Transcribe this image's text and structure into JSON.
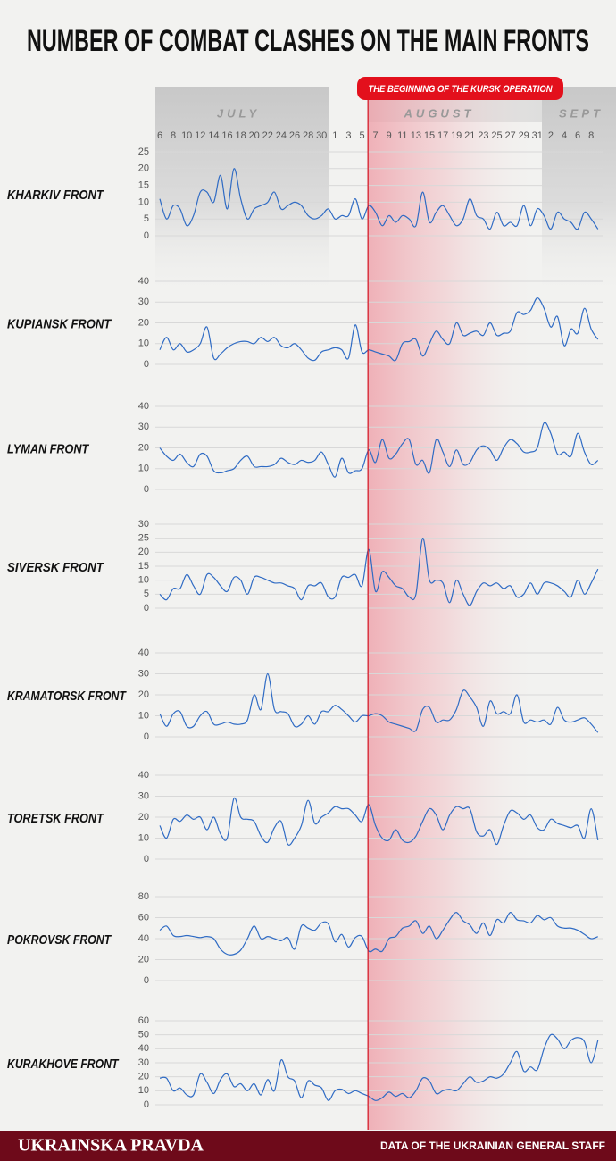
{
  "header": {
    "title": "NUMBER OF COMBAT CLASHES ON THE MAIN FRONTS"
  },
  "x_axis": {
    "categories": [
      "6",
      null,
      "8",
      null,
      "10",
      null,
      "12",
      null,
      "14",
      null,
      "16",
      null,
      "18",
      null,
      "20",
      null,
      "22",
      null,
      "24",
      null,
      "26",
      null,
      "28",
      null,
      "30",
      null,
      "1",
      null,
      "3",
      null,
      "5",
      null,
      "7",
      null,
      "9",
      null,
      "11",
      null,
      "13",
      null,
      "15",
      null,
      "17",
      null,
      "19",
      null,
      "21",
      null,
      "23",
      null,
      "25",
      null,
      "27",
      null,
      "29",
      null,
      "31",
      null,
      "2",
      null,
      "4",
      null,
      "6",
      null,
      "8",
      null
    ],
    "months": [
      "JULY",
      "AUGUST",
      "SEPT"
    ],
    "event": {
      "label": "THE BEGINNING OF THE KURSK OPERATION",
      "category_index": 31
    }
  },
  "chart_data": [
    {
      "type": "line",
      "title": "KHARKIV FRONT",
      "color": "#2f6bc4",
      "ylim": [
        0,
        25
      ],
      "yticks": [
        0,
        5,
        10,
        15,
        20,
        25
      ],
      "values": [
        11,
        5,
        9,
        8,
        3,
        6,
        13,
        13,
        10,
        18,
        8,
        20,
        11,
        5,
        8,
        9,
        10,
        13,
        8,
        9,
        10,
        9,
        6,
        5,
        6,
        8,
        5,
        6,
        6,
        11,
        5,
        9,
        7,
        3,
        6,
        4,
        6,
        5,
        3,
        13,
        4,
        7,
        9,
        6,
        3,
        5,
        11,
        6,
        5,
        2,
        7,
        3,
        4,
        3,
        9,
        3,
        8,
        6,
        2,
        7,
        5,
        4,
        2,
        7,
        5,
        2
      ]
    },
    {
      "type": "line",
      "title": "KUPIANSK FRONT",
      "color": "#2f6bc4",
      "ylim": [
        0,
        40
      ],
      "yticks": [
        0,
        10,
        20,
        30,
        40
      ],
      "values": [
        7,
        13,
        7,
        10,
        6,
        7,
        10,
        18,
        3,
        5,
        8,
        10,
        11,
        11,
        10,
        13,
        11,
        13,
        9,
        8,
        10,
        7,
        3,
        2,
        6,
        7,
        8,
        7,
        3,
        19,
        6,
        7,
        6,
        5,
        4,
        2,
        10,
        11,
        12,
        4,
        10,
        16,
        12,
        10,
        20,
        14,
        15,
        16,
        14,
        20,
        14,
        15,
        16,
        25,
        24,
        26,
        32,
        27,
        18,
        23,
        9,
        17,
        15,
        27,
        17,
        12
      ]
    },
    {
      "type": "line",
      "title": "LYMAN FRONT",
      "color": "#2f6bc4",
      "ylim": [
        0,
        40
      ],
      "yticks": [
        0,
        10,
        20,
        30,
        40
      ],
      "values": [
        20,
        16,
        14,
        17,
        13,
        11,
        17,
        16,
        9,
        8,
        9,
        10,
        14,
        16,
        11,
        11,
        11,
        12,
        15,
        13,
        12,
        14,
        13,
        14,
        18,
        12,
        6,
        15,
        8,
        9,
        10,
        19,
        13,
        24,
        15,
        17,
        22,
        24,
        12,
        14,
        8,
        24,
        18,
        11,
        19,
        12,
        13,
        19,
        21,
        19,
        14,
        20,
        24,
        22,
        18,
        18,
        20,
        32,
        27,
        17,
        18,
        16,
        27,
        18,
        12,
        14
      ]
    },
    {
      "type": "line",
      "title": "SIVERSK FRONT",
      "color": "#2f6bc4",
      "ylim": [
        0,
        30
      ],
      "yticks": [
        0,
        5,
        10,
        15,
        20,
        25,
        30
      ],
      "values": [
        5,
        3,
        7,
        7,
        12,
        8,
        5,
        12,
        11,
        8,
        6,
        11,
        10,
        5,
        11,
        11,
        10,
        9,
        9,
        8,
        7,
        3,
        8,
        8,
        9,
        4,
        4,
        11,
        11,
        12,
        8,
        21,
        6,
        13,
        11,
        8,
        7,
        4,
        5,
        25,
        10,
        10,
        9,
        2,
        10,
        5,
        1,
        6,
        9,
        8,
        9,
        7,
        8,
        4,
        5,
        9,
        5,
        9,
        9,
        8,
        6,
        4,
        10,
        5,
        9,
        14
      ]
    },
    {
      "type": "line",
      "title": "KRAMATORSK FRONT",
      "color": "#2f6bc4",
      "ylim": [
        0,
        40
      ],
      "yticks": [
        0,
        10,
        20,
        30,
        40
      ],
      "values": [
        11,
        5,
        11,
        12,
        5,
        5,
        10,
        12,
        6,
        6,
        7,
        6,
        6,
        8,
        20,
        13,
        30,
        13,
        12,
        11,
        5,
        6,
        10,
        6,
        12,
        12,
        15,
        13,
        10,
        7,
        10,
        10,
        11,
        10,
        7,
        6,
        5,
        4,
        3,
        13,
        14,
        7,
        8,
        8,
        13,
        22,
        19,
        14,
        5,
        17,
        11,
        12,
        11,
        20,
        7,
        8,
        7,
        8,
        6,
        14,
        8,
        7,
        8,
        9,
        6,
        2
      ]
    },
    {
      "type": "line",
      "title": "TORETSK FRONT",
      "color": "#2f6bc4",
      "ylim": [
        0,
        40
      ],
      "yticks": [
        0,
        10,
        20,
        30,
        40
      ],
      "values": [
        16,
        10,
        19,
        18,
        21,
        19,
        20,
        14,
        20,
        12,
        10,
        29,
        20,
        19,
        18,
        11,
        8,
        15,
        18,
        7,
        10,
        16,
        28,
        17,
        20,
        22,
        25,
        24,
        24,
        21,
        18,
        26,
        16,
        10,
        9,
        14,
        9,
        8,
        11,
        18,
        24,
        21,
        14,
        21,
        25,
        24,
        24,
        13,
        11,
        14,
        7,
        16,
        23,
        22,
        19,
        21,
        15,
        14,
        19,
        17,
        16,
        15,
        16,
        10,
        24,
        9
      ]
    },
    {
      "type": "line",
      "title": "POKROVSK FRONT",
      "color": "#2f6bc4",
      "ylim": [
        0,
        80
      ],
      "yticks": [
        0,
        20,
        40,
        60,
        80
      ],
      "values": [
        48,
        52,
        43,
        42,
        43,
        42,
        41,
        42,
        40,
        30,
        25,
        25,
        29,
        40,
        52,
        40,
        42,
        40,
        38,
        41,
        30,
        52,
        50,
        48,
        55,
        54,
        37,
        44,
        32,
        41,
        42,
        28,
        30,
        28,
        40,
        42,
        50,
        52,
        57,
        45,
        52,
        40,
        48,
        58,
        65,
        57,
        53,
        45,
        55,
        43,
        58,
        55,
        65,
        58,
        57,
        55,
        62,
        58,
        60,
        52,
        50,
        50,
        48,
        44,
        40,
        42
      ]
    },
    {
      "type": "line",
      "title": "KURAKHOVE FRONT",
      "color": "#2f6bc4",
      "ylim": [
        0,
        60
      ],
      "yticks": [
        0,
        10,
        20,
        30,
        40,
        50,
        60
      ],
      "values": [
        19,
        19,
        10,
        12,
        7,
        7,
        22,
        16,
        8,
        18,
        22,
        13,
        15,
        10,
        15,
        7,
        18,
        10,
        32,
        20,
        17,
        5,
        17,
        14,
        12,
        3,
        10,
        11,
        8,
        10,
        8,
        6,
        3,
        5,
        9,
        6,
        8,
        5,
        10,
        19,
        17,
        8,
        10,
        11,
        10,
        15,
        20,
        16,
        17,
        20,
        19,
        22,
        30,
        38,
        24,
        27,
        25,
        40,
        50,
        47,
        40,
        46,
        48,
        45,
        30,
        46
      ]
    }
  ],
  "footer": {
    "brand": "UKRAINSKA PRAVDA",
    "source": "DATA OF THE UKRAINIAN GENERAL STAFF"
  }
}
